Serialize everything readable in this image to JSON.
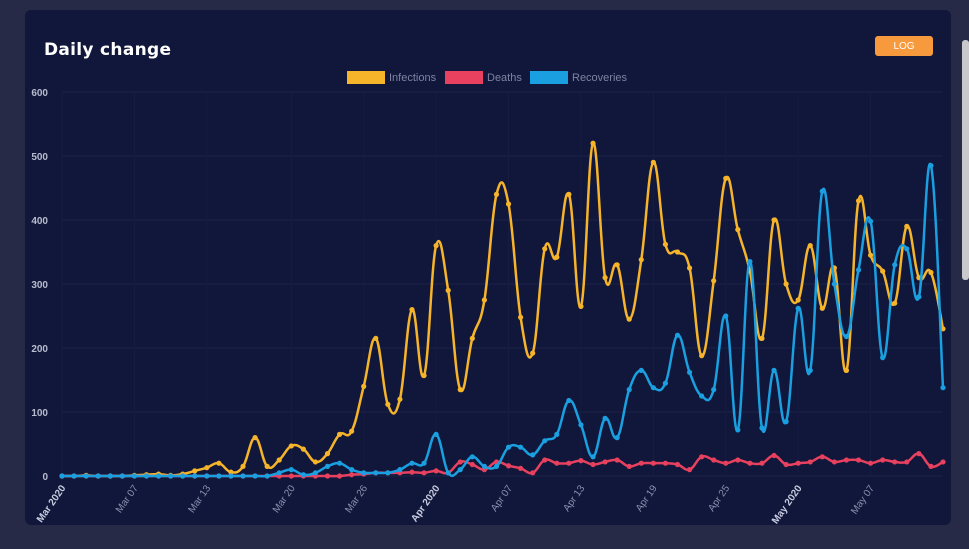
{
  "header": {
    "title": "Daily change",
    "log_button": "LOG"
  },
  "colors": {
    "infections": "#f6b42b",
    "deaths": "#e8415f",
    "recoveries": "#1a9fe0"
  },
  "chart_data": {
    "type": "line",
    "title": "Daily change",
    "ylim": [
      0,
      600
    ],
    "yticks": [
      0,
      100,
      200,
      300,
      400,
      500,
      600
    ],
    "x_tick_labels": [
      {
        "label": "Mar 2020",
        "day": 0,
        "bold": true
      },
      {
        "label": "Mar 07",
        "day": 6,
        "bold": false
      },
      {
        "label": "Mar 13",
        "day": 12,
        "bold": false
      },
      {
        "label": "Mar 20",
        "day": 19,
        "bold": false
      },
      {
        "label": "Mar 26",
        "day": 25,
        "bold": false
      },
      {
        "label": "Apr 2020",
        "day": 31,
        "bold": true
      },
      {
        "label": "Apr 07",
        "day": 37,
        "bold": false
      },
      {
        "label": "Apr 13",
        "day": 43,
        "bold": false
      },
      {
        "label": "Apr 19",
        "day": 49,
        "bold": false
      },
      {
        "label": "Apr 25",
        "day": 55,
        "bold": false
      },
      {
        "label": "May 2020",
        "day": 61,
        "bold": true
      },
      {
        "label": "May 07",
        "day": 67,
        "bold": false
      }
    ],
    "legend_position": "top",
    "grid": true,
    "series": [
      {
        "name": "Infections",
        "color_key": "infections",
        "values": [
          0,
          0,
          1,
          0,
          0,
          0,
          1,
          2,
          3,
          1,
          3,
          8,
          13,
          20,
          6,
          15,
          60,
          15,
          25,
          47,
          42,
          22,
          35,
          65,
          70,
          140,
          215,
          112,
          120,
          260,
          157,
          360,
          290,
          135,
          215,
          275,
          440,
          425,
          248,
          192,
          355,
          342,
          440,
          265,
          520,
          310,
          330,
          245,
          338,
          490,
          362,
          350,
          325,
          188,
          305,
          465,
          385,
          320,
          215,
          400,
          300,
          275,
          360,
          262,
          325,
          165,
          430,
          345,
          320,
          270,
          390,
          310,
          318,
          230
        ]
      },
      {
        "name": "Deaths",
        "color_key": "deaths",
        "values": [
          0,
          0,
          0,
          0,
          0,
          0,
          0,
          0,
          0,
          0,
          0,
          0,
          0,
          0,
          0,
          0,
          0,
          0,
          0,
          0,
          0,
          0,
          0,
          0,
          2,
          3,
          5,
          5,
          5,
          6,
          5,
          8,
          5,
          22,
          18,
          10,
          22,
          16,
          12,
          5,
          25,
          20,
          20,
          24,
          18,
          22,
          25,
          15,
          20,
          20,
          20,
          18,
          10,
          30,
          25,
          20,
          25,
          20,
          20,
          32,
          18,
          20,
          22,
          30,
          22,
          25,
          25,
          20,
          25,
          22,
          22,
          35,
          15,
          22
        ]
      },
      {
        "name": "Recoveries",
        "color_key": "recoveries",
        "values": [
          0,
          0,
          0,
          0,
          0,
          0,
          0,
          0,
          0,
          0,
          0,
          0,
          0,
          0,
          0,
          0,
          0,
          0,
          5,
          10,
          2,
          5,
          15,
          20,
          10,
          5,
          5,
          5,
          10,
          20,
          20,
          65,
          5,
          10,
          30,
          15,
          15,
          45,
          45,
          33,
          55,
          65,
          118,
          80,
          30,
          90,
          60,
          135,
          165,
          138,
          145,
          220,
          162,
          125,
          135,
          250,
          72,
          335,
          75,
          165,
          85,
          262,
          165,
          445,
          300,
          218,
          322,
          398,
          185,
          330,
          355,
          280,
          485,
          138
        ]
      }
    ]
  }
}
